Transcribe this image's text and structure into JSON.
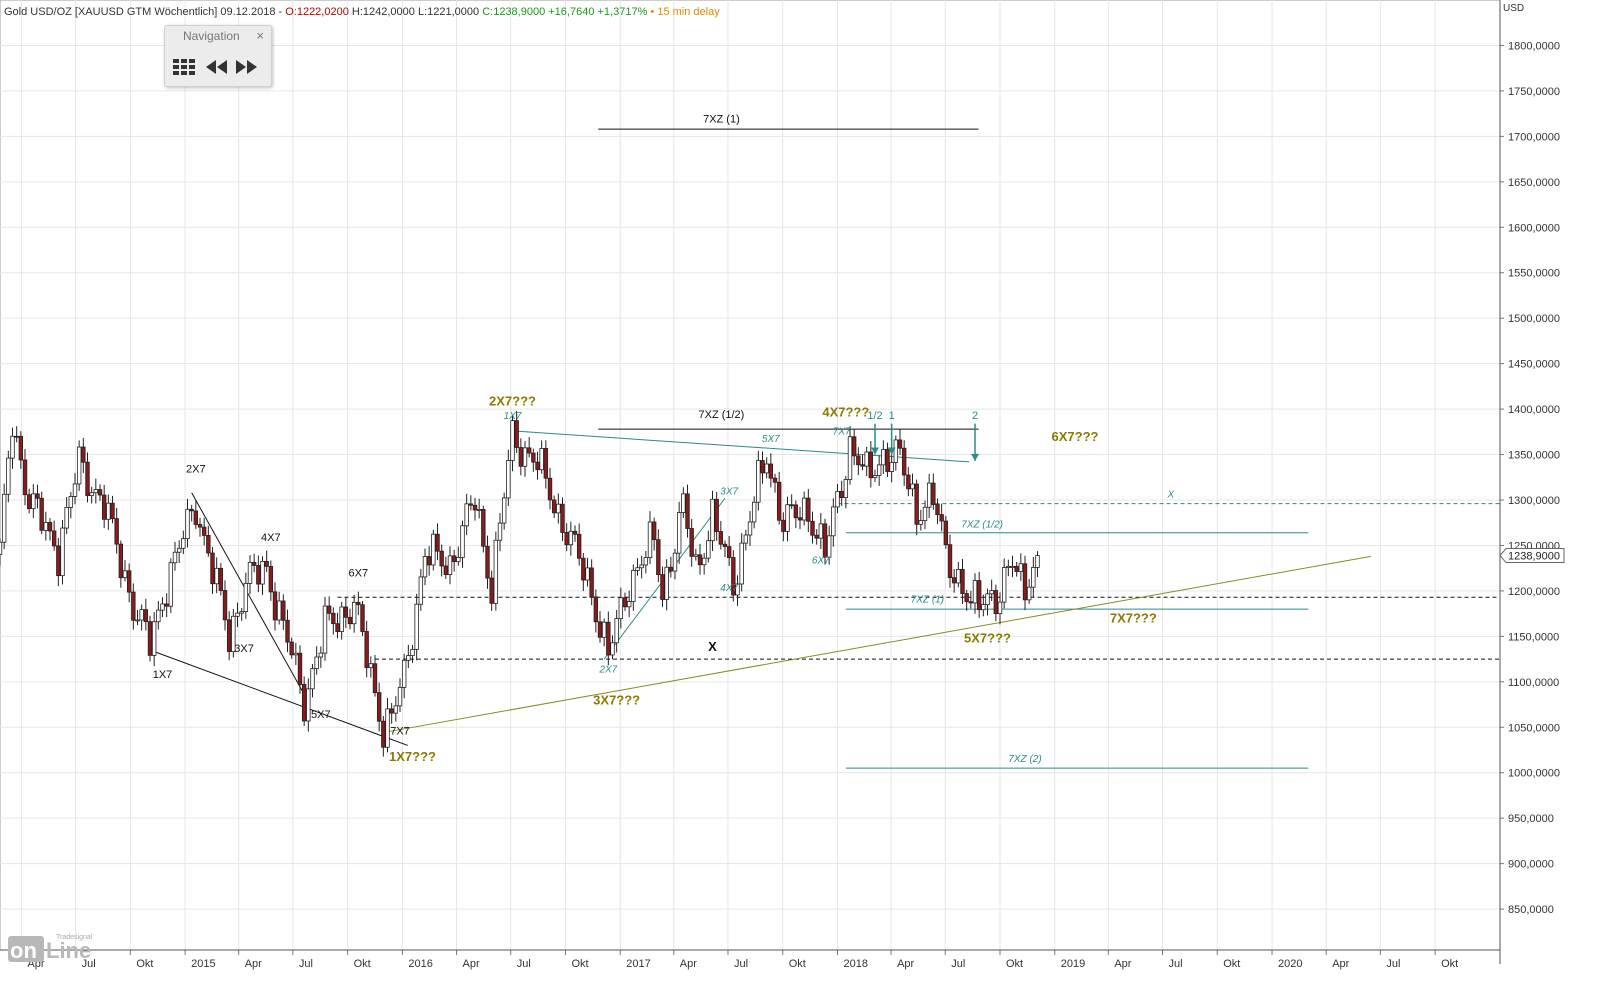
{
  "header": {
    "instrument": "Gold USD/OZ [XAUUSD GTM Wöchentlich] 09.12.2018 -",
    "open": "O:1222,0200",
    "high_low": "H:1242,0000 L:1221,0000",
    "close": "C:1238,9000 +16,7640 +1,3717%",
    "delay": "• 15 min delay"
  },
  "navigation": {
    "title": "Navigation",
    "close": "×",
    "grid_icon": "grid-icon",
    "back_icon": "rewind-icon",
    "fwd_icon": "fast-forward-icon"
  },
  "logo": {
    "top": "Tradesignal",
    "main": "onLine"
  },
  "colors": {
    "up": "#ffffff",
    "down": "#8b1a1a",
    "teal": "#2a8a8a",
    "olive": "#8a8a20",
    "label_olive": "#8c7a00"
  },
  "chart_data": {
    "type": "candlestick",
    "currency_label": "USD",
    "ylim": [
      805,
      1850
    ],
    "y_ticks": [
      "850,0000",
      "900,0000",
      "950,0000",
      "1000,0000",
      "1050,0000",
      "1100,0000",
      "1150,0000",
      "1200,0000",
      "1250,0000",
      "1300,0000",
      "1350,0000",
      "1400,0000",
      "1450,0000",
      "1500,0000",
      "1550,0000",
      "1600,0000",
      "1650,0000",
      "1700,0000",
      "1750,0000",
      "1800,0000"
    ],
    "y_tick_values": [
      850,
      900,
      950,
      1000,
      1050,
      1100,
      1150,
      1200,
      1250,
      1300,
      1350,
      1400,
      1450,
      1500,
      1550,
      1600,
      1650,
      1700,
      1750,
      1800
    ],
    "x_range": [
      "2014-02-24",
      "2021-01-18"
    ],
    "x_ticks": [
      {
        "label": "Apr",
        "date": "2014-04-01"
      },
      {
        "label": "Jul",
        "date": "2014-07-01"
      },
      {
        "label": "Okt",
        "date": "2014-10-01"
      },
      {
        "label": "2015",
        "date": "2015-01-01"
      },
      {
        "label": "Apr",
        "date": "2015-04-01"
      },
      {
        "label": "Jul",
        "date": "2015-07-01"
      },
      {
        "label": "Okt",
        "date": "2015-10-01"
      },
      {
        "label": "2016",
        "date": "2016-01-01"
      },
      {
        "label": "Apr",
        "date": "2016-04-01"
      },
      {
        "label": "Jul",
        "date": "2016-07-01"
      },
      {
        "label": "Okt",
        "date": "2016-10-01"
      },
      {
        "label": "2017",
        "date": "2017-01-01"
      },
      {
        "label": "Apr",
        "date": "2017-04-01"
      },
      {
        "label": "Jul",
        "date": "2017-07-01"
      },
      {
        "label": "Okt",
        "date": "2017-10-01"
      },
      {
        "label": "2018",
        "date": "2018-01-01"
      },
      {
        "label": "Apr",
        "date": "2018-04-01"
      },
      {
        "label": "Jul",
        "date": "2018-07-01"
      },
      {
        "label": "Okt",
        "date": "2018-10-01"
      },
      {
        "label": "2019",
        "date": "2019-01-01"
      },
      {
        "label": "Apr",
        "date": "2019-04-01"
      },
      {
        "label": "Jul",
        "date": "2019-07-01"
      },
      {
        "label": "Okt",
        "date": "2019-10-01"
      },
      {
        "label": "2020",
        "date": "2020-01-01"
      },
      {
        "label": "Apr",
        "date": "2020-04-01"
      },
      {
        "label": "Jul",
        "date": "2020-07-01"
      },
      {
        "label": "Okt",
        "date": "2020-10-01"
      }
    ],
    "last_price": "1238,9000",
    "price_path": [
      [
        "2014-02-24",
        1240
      ],
      [
        "2014-03-17",
        1388
      ],
      [
        "2014-04-14",
        1300
      ],
      [
        "2014-06-02",
        1245
      ],
      [
        "2014-07-07",
        1340
      ],
      [
        "2014-08-18",
        1295
      ],
      [
        "2014-10-06",
        1185
      ],
      [
        "2014-11-03",
        1140
      ],
      [
        "2014-12-01",
        1210
      ],
      [
        "2015-01-19",
        1295
      ],
      [
        "2015-03-16",
        1150
      ],
      [
        "2015-04-13",
        1210
      ],
      [
        "2015-05-18",
        1225
      ],
      [
        "2015-07-20",
        1080
      ],
      [
        "2015-08-24",
        1160
      ],
      [
        "2015-10-12",
        1185
      ],
      [
        "2015-11-30",
        1050
      ],
      [
        "2015-12-14",
        1060
      ],
      [
        "2016-01-04",
        1105
      ],
      [
        "2016-02-08",
        1240
      ],
      [
        "2016-03-21",
        1230
      ],
      [
        "2016-05-02",
        1300
      ],
      [
        "2016-05-30",
        1205
      ],
      [
        "2016-07-04",
        1370
      ],
      [
        "2016-08-15",
        1340
      ],
      [
        "2016-10-10",
        1255
      ],
      [
        "2016-11-14",
        1200
      ],
      [
        "2016-12-12",
        1128
      ],
      [
        "2017-01-16",
        1210
      ],
      [
        "2017-02-27",
        1255
      ],
      [
        "2017-03-13",
        1200
      ],
      [
        "2017-04-17",
        1290
      ],
      [
        "2017-05-08",
        1225
      ],
      [
        "2017-06-05",
        1280
      ],
      [
        "2017-07-10",
        1210
      ],
      [
        "2017-09-04",
        1350
      ],
      [
        "2017-10-02",
        1275
      ],
      [
        "2017-11-13",
        1290
      ],
      [
        "2017-12-11",
        1240
      ],
      [
        "2018-01-22",
        1360
      ],
      [
        "2018-02-19",
        1325
      ],
      [
        "2018-03-19",
        1350
      ],
      [
        "2018-04-16",
        1345
      ],
      [
        "2018-05-14",
        1290
      ],
      [
        "2018-06-11",
        1300
      ],
      [
        "2018-07-02",
        1245
      ],
      [
        "2018-08-13",
        1180
      ],
      [
        "2018-09-10",
        1200
      ],
      [
        "2018-10-01",
        1190
      ],
      [
        "2018-10-22",
        1232
      ],
      [
        "2018-11-12",
        1210
      ],
      [
        "2018-12-09",
        1238.9
      ]
    ],
    "hlines": [
      {
        "label": "7XZ (1)",
        "y": 1708,
        "x1": "2016-11-25",
        "x2": "2018-08-26",
        "style": "solid",
        "color": "#111"
      },
      {
        "label": "7XZ (1/2)",
        "y": 1378,
        "x1": "2016-11-25",
        "x2": "2018-08-26",
        "style": "solid",
        "color": "#111"
      },
      {
        "label": "",
        "y": 1193,
        "x1": "2015-09-14",
        "x2": "2021-01-18",
        "style": "dashed",
        "color": "#111"
      },
      {
        "label": "",
        "y": 1125,
        "x1": "2015-11-16",
        "x2": "2021-01-18",
        "style": "dashed",
        "color": "#111"
      },
      {
        "label": "X",
        "y": 1296,
        "x1": "2018-01-01",
        "x2": "2021-01-18",
        "style": "dashed",
        "color": "#2a8a8a"
      },
      {
        "label": "7XZ (1/2)",
        "y": 1264,
        "x1": "2018-01-15",
        "x2": "2020-03-02",
        "style": "solid",
        "color": "#2a8a8a"
      },
      {
        "label": "7XZ (1)",
        "y": 1180,
        "x1": "2018-01-15",
        "x2": "2020-03-02",
        "style": "solid",
        "color": "#2a8a8a"
      },
      {
        "label": "7XZ (2)",
        "y": 1005,
        "x1": "2018-01-15",
        "x2": "2020-03-02",
        "style": "solid",
        "color": "#2a8a8a"
      }
    ],
    "trendlines": [
      {
        "from": [
          "2016-07-04",
          1376
        ],
        "to": [
          "2018-08-10",
          1342
        ],
        "color": "#2a8a8a"
      },
      {
        "from": [
          "2015-12-07",
          1045
        ],
        "to": [
          "2020-06-15",
          1238
        ],
        "color": "#8a8a20"
      },
      {
        "from": [
          "2014-11-03",
          1135
        ],
        "to": [
          "2016-01-10",
          1030
        ],
        "color": "#111"
      },
      {
        "from": [
          "2015-01-12",
          1308
        ],
        "to": [
          "2015-07-27",
          1078
        ],
        "color": "#111"
      },
      {
        "from": [
          "2016-12-05",
          1125
        ],
        "to": [
          "2017-06-26",
          1302
        ],
        "color": "#2a8a8a"
      }
    ],
    "annotations": [
      {
        "text": "2X7",
        "date": "2015-01-19",
        "y": 1330,
        "color": "#111"
      },
      {
        "text": "4X7",
        "date": "2015-05-25",
        "y": 1255,
        "color": "#111"
      },
      {
        "text": "6X7",
        "date": "2015-10-19",
        "y": 1216,
        "color": "#111"
      },
      {
        "text": "3X7",
        "date": "2015-04-10",
        "y": 1133,
        "color": "#111"
      },
      {
        "text": "1X7",
        "date": "2014-11-24",
        "y": 1104,
        "color": "#111"
      },
      {
        "text": "5X7",
        "date": "2015-08-17",
        "y": 1060,
        "color": "#111"
      },
      {
        "text": "7X7",
        "date": "2015-12-28",
        "y": 1042,
        "color": "#111"
      },
      {
        "text": "X",
        "date": "2017-06-05",
        "y": 1134,
        "color": "#111",
        "bold": true
      },
      {
        "text": "1X7???",
        "date": "2016-01-18",
        "y": 1013,
        "color": "#8c7a00",
        "bold": true
      },
      {
        "text": "2X7???",
        "date": "2016-07-04",
        "y": 1404,
        "color": "#8c7a00",
        "bold": true
      },
      {
        "text": "3X7???",
        "date": "2016-12-26",
        "y": 1075,
        "color": "#8c7a00",
        "bold": true
      },
      {
        "text": "4X7???",
        "date": "2018-01-15",
        "y": 1392,
        "color": "#8c7a00",
        "bold": true
      },
      {
        "text": "5X7???",
        "date": "2018-09-10",
        "y": 1143,
        "color": "#8c7a00",
        "bold": true
      },
      {
        "text": "6X7???",
        "date": "2019-02-04",
        "y": 1365,
        "color": "#8c7a00",
        "bold": true
      },
      {
        "text": "7X7???",
        "date": "2019-05-13",
        "y": 1165,
        "color": "#8c7a00",
        "bold": true
      },
      {
        "text": "7XZ (1)",
        "date": "2017-06-20",
        "y": 1715,
        "color": "#111"
      },
      {
        "text": "7XZ (1/2)",
        "date": "2017-06-20",
        "y": 1390,
        "color": "#111"
      },
      {
        "text": "1X7",
        "date": "2016-07-04",
        "y": 1389,
        "color": "#2a8a8a",
        "italic": true
      },
      {
        "text": "2X7",
        "date": "2016-12-12",
        "y": 1110,
        "color": "#2a8a8a",
        "italic": true
      },
      {
        "text": "3X7",
        "date": "2017-07-03",
        "y": 1306,
        "color": "#2a8a8a",
        "italic": true
      },
      {
        "text": "4X7",
        "date": "2017-07-03",
        "y": 1200,
        "color": "#2a8a8a",
        "italic": true
      },
      {
        "text": "5X7",
        "date": "2017-09-11",
        "y": 1364,
        "color": "#2a8a8a",
        "italic": true
      },
      {
        "text": "6X7",
        "date": "2017-12-04",
        "y": 1230,
        "color": "#2a8a8a",
        "italic": true
      },
      {
        "text": "7X7",
        "date": "2018-01-08",
        "y": 1372,
        "color": "#2a8a8a",
        "italic": true
      },
      {
        "text": "1/2",
        "date": "2018-03-05",
        "y": 1389,
        "color": "#2a8a8a"
      },
      {
        "text": "1",
        "date": "2018-04-02",
        "y": 1389,
        "color": "#2a8a8a"
      },
      {
        "text": "2",
        "date": "2018-08-20",
        "y": 1389,
        "color": "#2a8a8a"
      },
      {
        "text": "X",
        "date": "2019-07-15",
        "y": 1303,
        "color": "#2a8a8a",
        "italic": true
      },
      {
        "text": "7XZ (1/2)",
        "date": "2018-09-01",
        "y": 1270,
        "color": "#2a8a8a",
        "italic": true
      },
      {
        "text": "7XZ (1)",
        "date": "2018-06-01",
        "y": 1187,
        "color": "#2a8a8a",
        "italic": true
      },
      {
        "text": "7XZ (2)",
        "date": "2018-11-12",
        "y": 1012,
        "color": "#2a8a8a",
        "italic": true
      }
    ],
    "arrows": [
      {
        "date": "2018-03-05",
        "y_from": 1384,
        "y_to": 1350
      },
      {
        "date": "2018-04-02",
        "y_from": 1384,
        "y_to": 1350
      },
      {
        "date": "2018-08-20",
        "y_from": 1384,
        "y_to": 1343
      }
    ]
  }
}
